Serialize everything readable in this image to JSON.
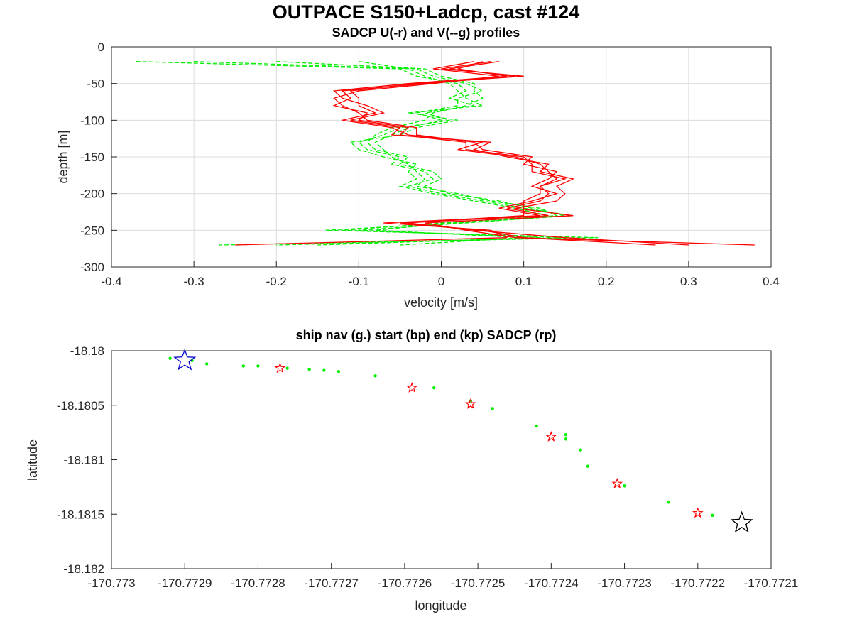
{
  "figure": {
    "title": "OUTPACE S150+Ladcp, cast #124"
  },
  "chart_data": [
    {
      "type": "line",
      "title": "SADCP U(-r) and V(--g) profiles",
      "xlabel": "velocity [m/s]",
      "ylabel": "depth [m]",
      "xlim": [
        -0.4,
        0.4
      ],
      "ylim": [
        -300,
        0
      ],
      "xticks": [
        "-0.4",
        "-0.3",
        "-0.2",
        "-0.1",
        "0",
        "0.1",
        "0.2",
        "0.3",
        "0.4"
      ],
      "yticks": [
        "0",
        "-50",
        "-100",
        "-150",
        "-200",
        "-250",
        "-300"
      ],
      "grid": true,
      "colors": {
        "U": "#ff0000",
        "V": "#00ee00"
      },
      "depth": [
        -20,
        -30,
        -40,
        -50,
        -60,
        -70,
        -80,
        -90,
        -100,
        -110,
        -120,
        -130,
        -140,
        -150,
        -160,
        -170,
        -180,
        -190,
        -200,
        -210,
        -220,
        -230,
        -240,
        -250,
        -260,
        -270
      ],
      "series": [
        {
          "name": "U(-r)",
          "profiles": [
            [
              0.07,
              0.01,
              0.09,
              -0.02,
              -0.12,
              -0.11,
              -0.13,
              -0.09,
              -0.1,
              -0.04,
              -0.05,
              0.03,
              0.03,
              0.1,
              0.11,
              0.11,
              0.15,
              0.12,
              0.13,
              0.12,
              0.08,
              0.13,
              -0.05,
              0.05,
              0.1,
              0.26
            ],
            [
              0.06,
              0.0,
              0.1,
              -0.03,
              -0.11,
              -0.1,
              -0.1,
              -0.08,
              -0.12,
              -0.06,
              -0.04,
              0.05,
              0.02,
              0.09,
              0.12,
              0.13,
              0.14,
              0.12,
              0.12,
              0.1,
              0.1,
              0.1,
              -0.04,
              0.04,
              0.15,
              0.3
            ],
            [
              0.05,
              0.02,
              0.08,
              -0.04,
              -0.13,
              -0.12,
              -0.09,
              -0.07,
              -0.11,
              -0.05,
              -0.06,
              0.06,
              0.04,
              0.08,
              0.13,
              0.12,
              0.16,
              0.14,
              0.15,
              0.14,
              0.09,
              0.16,
              -0.02,
              0.03,
              0.09,
              0.38
            ],
            [
              0.04,
              -0.01,
              0.07,
              -0.01,
              -0.1,
              -0.13,
              -0.12,
              -0.1,
              -0.09,
              -0.03,
              -0.03,
              0.04,
              0.05,
              0.11,
              0.1,
              0.14,
              0.13,
              0.11,
              0.14,
              0.11,
              0.07,
              0.12,
              -0.07,
              0.06,
              0.08,
              -0.25
            ]
          ]
        },
        {
          "name": "V(--g)",
          "profiles": [
            [
              -0.37,
              -0.05,
              -0.03,
              0.02,
              0.03,
              0.01,
              0.04,
              -0.02,
              0.01,
              -0.05,
              -0.07,
              -0.1,
              -0.09,
              -0.05,
              -0.06,
              -0.02,
              -0.01,
              -0.04,
              0.0,
              0.05,
              0.1,
              0.16,
              0.02,
              -0.14,
              0.19,
              -0.27
            ],
            [
              -0.3,
              -0.03,
              -0.01,
              0.03,
              0.05,
              0.02,
              0.02,
              -0.03,
              0.0,
              -0.04,
              -0.06,
              -0.08,
              -0.07,
              -0.06,
              -0.04,
              -0.03,
              -0.02,
              -0.03,
              0.02,
              0.06,
              0.12,
              0.14,
              0.0,
              -0.12,
              0.15,
              -0.2
            ],
            [
              -0.2,
              -0.02,
              0.0,
              0.04,
              0.04,
              0.05,
              0.03,
              -0.01,
              -0.02,
              -0.06,
              -0.08,
              -0.09,
              -0.08,
              -0.04,
              -0.05,
              -0.01,
              0.0,
              -0.02,
              0.01,
              0.07,
              0.11,
              0.15,
              0.03,
              -0.1,
              0.12,
              -0.15
            ],
            [
              -0.1,
              -0.04,
              -0.02,
              0.01,
              0.02,
              0.03,
              0.05,
              -0.04,
              0.02,
              -0.03,
              -0.05,
              -0.11,
              -0.1,
              -0.07,
              -0.03,
              -0.04,
              -0.03,
              -0.05,
              -0.01,
              0.04,
              0.09,
              0.13,
              0.01,
              -0.08,
              0.1,
              -0.05
            ]
          ]
        }
      ]
    },
    {
      "type": "scatter",
      "title": "ship nav (g.) start (bp) end (kp) SADCP (rp)",
      "xlabel": "longitude",
      "ylabel": "latitude",
      "xlim": [
        -170.773,
        -170.7721
      ],
      "ylim": [
        -18.182,
        -18.18
      ],
      "xticks": [
        "-170.773",
        "-170.7729",
        "-170.7728",
        "-170.7727",
        "-170.7726",
        "-170.7725",
        "-170.7724",
        "-170.7723",
        "-170.7722",
        "-170.7721"
      ],
      "yticks": [
        "-18.18",
        "-18.1805",
        "-18.181",
        "-18.1815",
        "-18.182"
      ],
      "grid": false,
      "colors": {
        "nav": "#00ee00",
        "start": "#0000cc",
        "end": "#000000",
        "sadcp": "#ff0000"
      },
      "nav": [
        [
          -170.77292,
          -18.18007
        ],
        [
          -170.77289,
          -18.18009
        ],
        [
          -170.77287,
          -18.18012
        ],
        [
          -170.77282,
          -18.18014
        ],
        [
          -170.7728,
          -18.18014
        ],
        [
          -170.77276,
          -18.18016
        ],
        [
          -170.77273,
          -18.18017
        ],
        [
          -170.77271,
          -18.18018
        ],
        [
          -170.77269,
          -18.18019
        ],
        [
          -170.77264,
          -18.18023
        ],
        [
          -170.77256,
          -18.18034
        ],
        [
          -170.77251,
          -18.18046
        ],
        [
          -170.77248,
          -18.18053
        ],
        [
          -170.77242,
          -18.18069
        ],
        [
          -170.77238,
          -18.18077
        ],
        [
          -170.77238,
          -18.18081
        ],
        [
          -170.77236,
          -18.18091
        ],
        [
          -170.77235,
          -18.18106
        ],
        [
          -170.7723,
          -18.18124
        ],
        [
          -170.77224,
          -18.18139
        ],
        [
          -170.77218,
          -18.18151
        ]
      ],
      "start": [
        -170.7729,
        -18.18009
      ],
      "end": [
        -170.77214,
        -18.18158
      ],
      "sadcp": [
        [
          -170.77277,
          -18.18016
        ],
        [
          -170.77259,
          -18.18034
        ],
        [
          -170.77251,
          -18.18049
        ],
        [
          -170.7724,
          -18.18079
        ],
        [
          -170.77231,
          -18.18122
        ],
        [
          -170.7722,
          -18.18149
        ]
      ]
    }
  ]
}
